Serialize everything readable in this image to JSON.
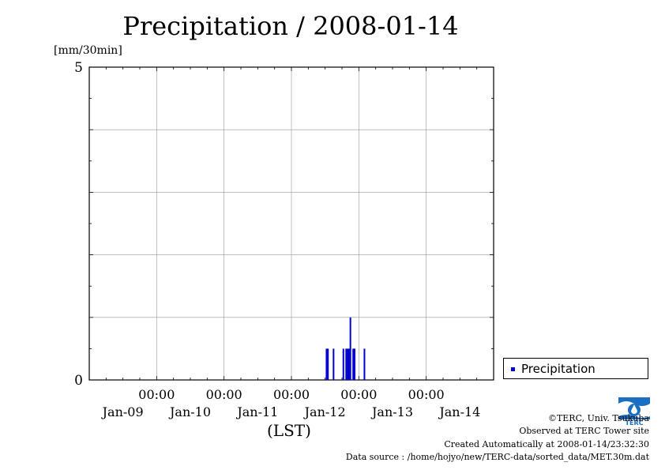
{
  "chart_data": {
    "type": "bar",
    "title": "Precipitation / 2008-01-14",
    "ylabel": "[mm/30min]",
    "xlabel": "(LST)",
    "ylim": [
      0,
      5
    ],
    "y_ticks": [
      "0",
      "5"
    ],
    "x_ticks": [
      {
        "time": "00:00",
        "date": "Jan-09"
      },
      {
        "time": "00:00",
        "date": "Jan-10"
      },
      {
        "time": "00:00",
        "date": "Jan-11"
      },
      {
        "time": "00:00",
        "date": "Jan-12"
      },
      {
        "time": "00:00",
        "date": "Jan-13"
      },
      {
        "time": "00:00",
        "date": "Jan-14"
      }
    ],
    "x_range": [
      "2008-01-08 00:00",
      "2008-01-14 00:00"
    ],
    "grid": true,
    "legend_position": "right-bottom",
    "series": [
      {
        "name": "Precipitation",
        "color": "#0000cc",
        "points": [
          {
            "t": "2008-01-11 12:30",
            "v": 0.5
          },
          {
            "t": "2008-01-11 13:00",
            "v": 0.5
          },
          {
            "t": "2008-01-11 15:00",
            "v": 0.5
          },
          {
            "t": "2008-01-11 18:30",
            "v": 0.5
          },
          {
            "t": "2008-01-11 19:30",
            "v": 0.5
          },
          {
            "t": "2008-01-11 20:00",
            "v": 0.5
          },
          {
            "t": "2008-01-11 20:30",
            "v": 0.5
          },
          {
            "t": "2008-01-11 21:00",
            "v": 1.0
          },
          {
            "t": "2008-01-11 22:00",
            "v": 0.5
          },
          {
            "t": "2008-01-11 22:30",
            "v": 0.5
          },
          {
            "t": "2008-01-12 02:00",
            "v": 0.5
          }
        ]
      }
    ]
  },
  "footer": {
    "copyright": "©TERC, Univ. Tsukuba",
    "observed": "Observed at TERC Tower site",
    "created": "Created Automatically at 2008-01-14/23:32:30",
    "source": "Data source : /home/hojyo/new/TERC-data/sorted_data/MET.30m.dat",
    "logo_text": "TERC"
  }
}
